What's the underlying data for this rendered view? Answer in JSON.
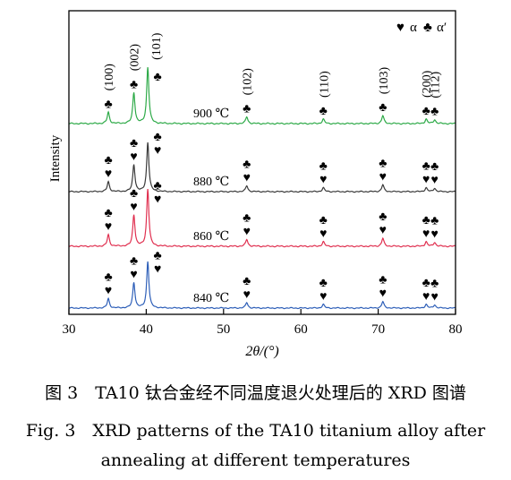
{
  "chart_data": {
    "type": "line",
    "xlabel": "2θ/(°)",
    "ylabel": "Intensity",
    "xlim": [
      30,
      80
    ],
    "xticks": [
      30,
      40,
      50,
      60,
      70,
      80
    ],
    "grid": false,
    "legend": {
      "placement": "top-right",
      "entries": [
        {
          "symbol": "♥",
          "label": "α"
        },
        {
          "symbol": "♣",
          "label": "α′"
        }
      ]
    },
    "peaks": [
      {
        "hkl": "(100)",
        "two_theta": 35.1,
        "rel": 0.2
      },
      {
        "hkl": "(002)",
        "two_theta": 38.4,
        "rel": 0.55
      },
      {
        "hkl": "(101)",
        "two_theta": 40.2,
        "rel": 1.0
      },
      {
        "hkl": "(102)",
        "two_theta": 53.0,
        "rel": 0.12
      },
      {
        "hkl": "(110)",
        "two_theta": 62.9,
        "rel": 0.08
      },
      {
        "hkl": "(103)",
        "two_theta": 70.6,
        "rel": 0.14
      },
      {
        "hkl": "(200)",
        "two_theta": 76.2,
        "rel": 0.08
      },
      {
        "hkl": "(112)",
        "two_theta": 77.3,
        "rel": 0.07
      }
    ],
    "series": [
      {
        "name": "900 ℃",
        "color": "#2eaa48",
        "phases": [
          "α′"
        ],
        "scale": 1.0
      },
      {
        "name": "880 ℃",
        "color": "#3a3a3a",
        "phases": [
          "α′",
          "α"
        ],
        "scale": 1.0
      },
      {
        "name": "860 ℃",
        "color": "#e03050",
        "phases": [
          "α′",
          "α"
        ],
        "scale": 1.0
      },
      {
        "name": "840 ℃",
        "color": "#2e5fb8",
        "phases": [
          "α′",
          "α"
        ],
        "scale": 1.0
      }
    ]
  },
  "caption": {
    "zh": "图 3　TA10 钛合金经不同温度退火处理后的 XRD 图谱",
    "en_line1": "Fig. 3　XRD patterns of the TA10 titanium alloy after",
    "en_line2": "annealing at different temperatures"
  }
}
